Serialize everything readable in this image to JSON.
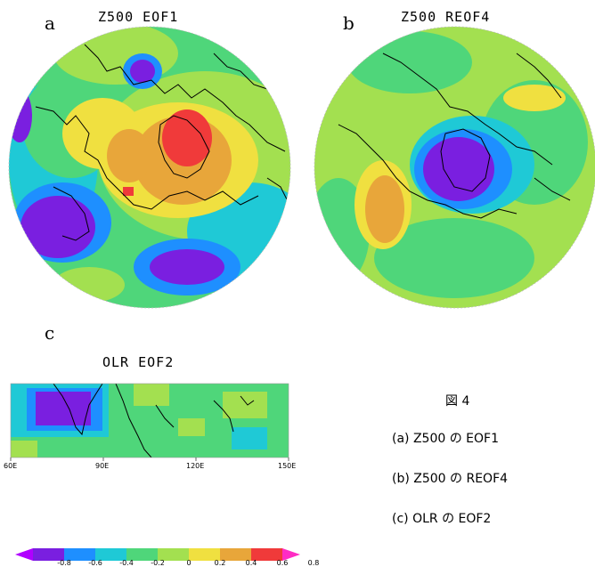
{
  "panels": {
    "a": {
      "letter": "a",
      "title": "Z500 EOF1"
    },
    "b": {
      "letter": "b",
      "title": "Z500 REOF4"
    },
    "c": {
      "letter": "c",
      "title": "OLR EOF2"
    }
  },
  "olr_axis": {
    "ticks": [
      "60E",
      "90E",
      "120E",
      "150E"
    ]
  },
  "colorbar": {
    "labels": [
      "-0.8",
      "-0.6",
      "-0.4",
      "-0.2",
      "0",
      "0.2",
      "0.4",
      "0.6",
      "0.8"
    ],
    "colors": [
      "#b100ff",
      "#7a1fe0",
      "#1e8fff",
      "#1fc9d6",
      "#4fd67a",
      "#a3e050",
      "#f0e040",
      "#e8a63a",
      "#f03a3a",
      "#ff2cc4"
    ]
  },
  "caption": {
    "figure": "図 4",
    "lines": [
      "(a)  Z500 の EOF1",
      "(b)  Z500 の REOF4",
      "(c)  OLR の EOF2"
    ]
  }
}
